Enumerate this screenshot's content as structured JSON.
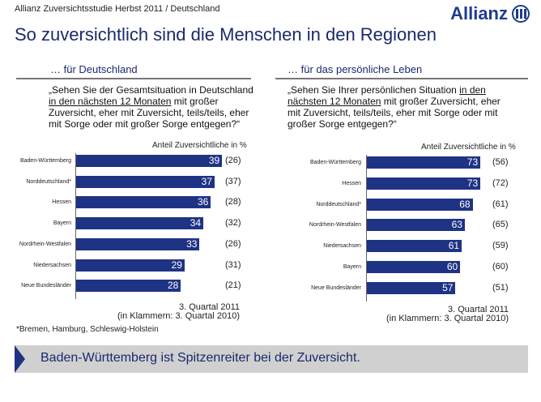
{
  "header": {
    "supertitle": "Allianz Zuversichtsstudie Herbst 2011 / Deutschland",
    "logo": "Allianz",
    "title": "So zuversichtlich sind die Menschen in den Regionen"
  },
  "colors": {
    "bar": "#1f3385",
    "title": "#1a2a6c",
    "banner": "#d0d0d0"
  },
  "chart_data": [
    {
      "type": "bar",
      "orientation": "horizontal",
      "section": "… für Deutschland",
      "question": {
        "pre": "„Sehen Sie der Gesamtsituation in Deutschland",
        "underlined": "in den nächsten 12 Monaten",
        "post": "mit großer Zuversicht, eher mit Zuversicht, teils/teils, eher mit Sorge oder mit großer Sorge entgegen?“"
      },
      "axis_label": "Anteil Zuversichtliche in %",
      "categories": [
        "Baden-Württemberg",
        "Norddeutschland*",
        "Hessen",
        "Bayern",
        "Nordrhein-Westfalen",
        "Niedersachsen",
        "Neue Bundesländer"
      ],
      "values": [
        39,
        37,
        36,
        34,
        33,
        29,
        28
      ],
      "previous": [
        "(26)",
        "(37)",
        "(28)",
        "(32)",
        "(26)",
        "(31)",
        "(21)"
      ],
      "footer": [
        "3. Quartal 2011",
        "(in Klammern: 3. Quartal 2010)"
      ]
    },
    {
      "type": "bar",
      "orientation": "horizontal",
      "section": "… für das persönliche Leben",
      "question": {
        "pre": "„Sehen Sie Ihrer persönlichen Situation",
        "underlined": "in den nächsten 12 Monaten",
        "post": "mit großer Zuversicht, eher mit Zuversicht, teils/teils, eher mit Sorge oder mit großer Sorge entgegen?“"
      },
      "axis_label": "Anteil Zuversichtliche in %",
      "categories": [
        "Baden-Württemberg",
        "Hessen",
        "Norddeutschland*",
        "Nordrhein-Westfalen",
        "Niedersachsen",
        "Bayern",
        "Neue Bundesländer"
      ],
      "values": [
        73,
        73,
        68,
        63,
        61,
        60,
        57
      ],
      "previous": [
        "(56)",
        "(72)",
        "(61)",
        "(65)",
        "(59)",
        "(60)",
        "(51)"
      ],
      "footer": [
        "3. Quartal 2011",
        "(in Klammern: 3. Quartal 2010)"
      ]
    }
  ],
  "footnote": "*Bremen, Hamburg, Schleswig-Holstein",
  "banner": "Baden-Württemberg ist Spitzenreiter bei der Zuversicht."
}
